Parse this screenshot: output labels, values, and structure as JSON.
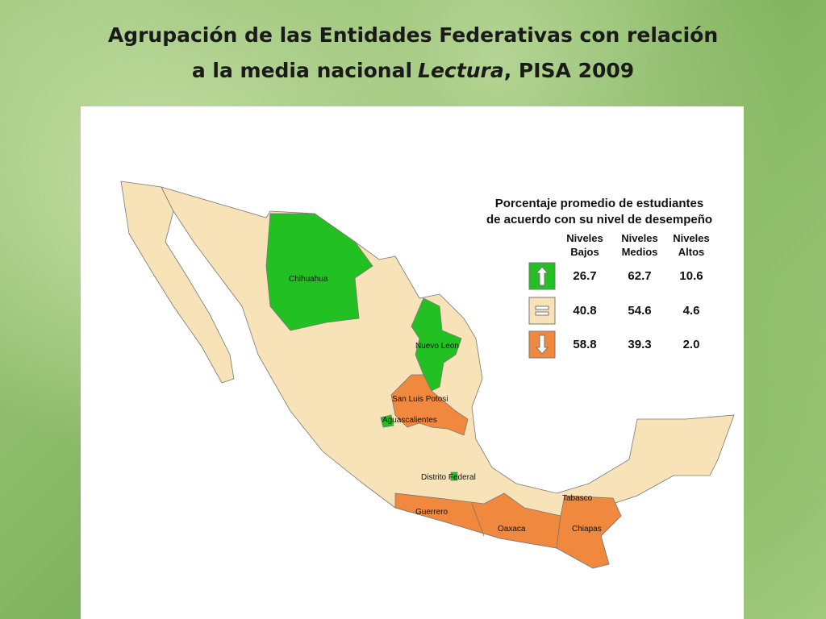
{
  "header": {
    "title_line1": "Agrupación de las Entidades Federativas con relación",
    "title_line2": [
      "a la media nacional",
      "Lectura",
      ", PISA 2009"
    ]
  },
  "legend": {
    "title_lines": [
      "Porcentaje promedio de estudiantes",
      "de acuerdo con su nivel de desempeño"
    ],
    "columns": [
      "Niveles Bajos",
      "Niveles Medios",
      "Niveles Altos"
    ],
    "rows": [
      [
        "26.7",
        "62.7",
        "10.6"
      ],
      [
        "40.8",
        "54.6",
        "4.6"
      ],
      [
        "58.8",
        "39.3",
        "2.0"
      ]
    ]
  },
  "states": [
    "Chihuahua",
    "Nuevo Leon",
    "San Luis Potosi",
    "Aguascalientes",
    "Distrito Federal",
    "Guerrero",
    "Oaxaca",
    "Tabasco",
    "Chiapas"
  ]
}
